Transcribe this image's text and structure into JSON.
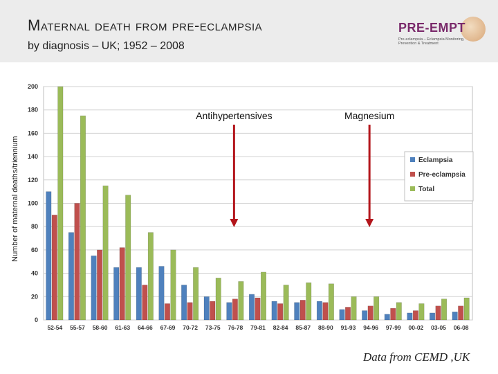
{
  "header": {
    "title": "Maternal death from pre-eclampsia",
    "subtitle": "by diagnosis – UK; 1952 – 2008"
  },
  "logo": {
    "word": "PRE-EMPT",
    "tagline": "Pre-eclampsia – Eclampsia Monitoring, Prevention & Treatment"
  },
  "source": "Data from CEMD ,UK",
  "colors": {
    "eclampsia": "#4f81bd",
    "pre_eclampsia": "#c0504d",
    "total": "#9bbb59"
  },
  "chart_data": {
    "type": "bar",
    "ylabel": "Number of maternal deaths/triennium",
    "ylim": [
      0,
      200
    ],
    "yticks": [
      0,
      20,
      40,
      60,
      80,
      100,
      120,
      140,
      160,
      180,
      200
    ],
    "grid": true,
    "legend_position": "right",
    "categories": [
      "52-54",
      "55-57",
      "58-60",
      "61-63",
      "64-66",
      "67-69",
      "70-72",
      "73-75",
      "76-78",
      "79-81",
      "82-84",
      "85-87",
      "88-90",
      "91-93",
      "94-96",
      "97-99",
      "00-02",
      "03-05",
      "06-08"
    ],
    "series": [
      {
        "name": "Eclampsia",
        "values": [
          110,
          75,
          55,
          45,
          45,
          46,
          30,
          20,
          15,
          22,
          16,
          15,
          16,
          9,
          8,
          5,
          6,
          6,
          7
        ]
      },
      {
        "name": "Pre-eclampsia",
        "values": [
          90,
          100,
          60,
          62,
          30,
          14,
          15,
          16,
          18,
          19,
          14,
          17,
          15,
          11,
          12,
          10,
          8,
          12,
          12
        ]
      },
      {
        "name": "Total",
        "values": [
          200,
          175,
          115,
          107,
          75,
          60,
          45,
          36,
          33,
          41,
          30,
          32,
          31,
          20,
          20,
          15,
          14,
          18,
          19
        ]
      }
    ],
    "annotations": [
      {
        "text": "Antihypertensives",
        "at_category": "76-78"
      },
      {
        "text": "Magnesium",
        "at_category": "94-96"
      }
    ]
  }
}
